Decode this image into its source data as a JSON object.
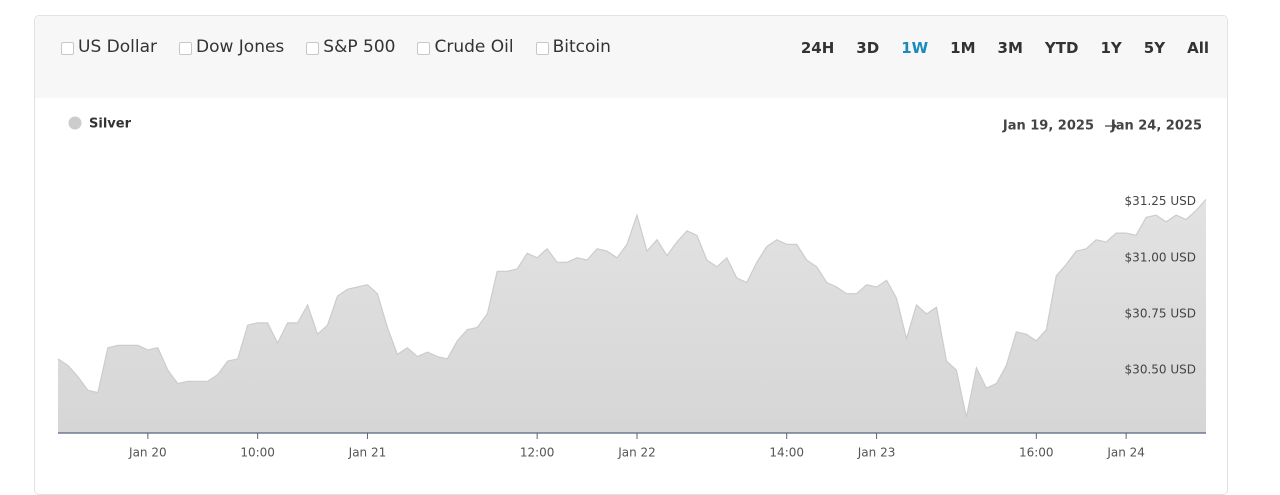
{
  "toolbar": {
    "comparisons": [
      "US Dollar",
      "Dow Jones",
      "S&P 500",
      "Crude Oil",
      "Bitcoin"
    ],
    "ranges": [
      "24H",
      "3D",
      "1W",
      "1M",
      "3M",
      "YTD",
      "1Y",
      "5Y",
      "All"
    ],
    "active_range": "1W"
  },
  "date_range": {
    "start": "Jan 19, 2025",
    "end": "Jan 24, 2025"
  },
  "chart_data": {
    "type": "area",
    "categories": [
      null,
      null,
      null,
      null,
      null,
      null,
      null,
      null,
      null,
      "Jan 20",
      null,
      null,
      null,
      null,
      null,
      null,
      null,
      null,
      null,
      null,
      "10:00",
      null,
      null,
      null,
      null,
      null,
      null,
      null,
      null,
      null,
      null,
      "Jan 21",
      null,
      null,
      null,
      null,
      null,
      null,
      null,
      null,
      null,
      null,
      null,
      null,
      null,
      null,
      null,
      null,
      "12:00",
      null,
      null,
      null,
      null,
      null,
      null,
      null,
      null,
      null,
      "Jan 22",
      null,
      null,
      null,
      null,
      null,
      null,
      null,
      null,
      null,
      null,
      null,
      null,
      null,
      null,
      "14:00",
      null,
      null,
      null,
      null,
      null,
      null,
      null,
      null,
      "Jan 23",
      null,
      null,
      null,
      null,
      null,
      null,
      null,
      null,
      null,
      null,
      null,
      null,
      null,
      null,
      null,
      "16:00",
      null,
      null,
      null,
      null,
      null,
      null,
      null,
      null,
      "Jan 24",
      null,
      null,
      null,
      null,
      null,
      null,
      null,
      null
    ],
    "series": [
      {
        "name": "Silver",
        "color": "#cccccc",
        "values": [
          30.55,
          30.52,
          30.47,
          30.41,
          30.4,
          30.6,
          30.61,
          30.61,
          30.61,
          30.59,
          30.6,
          30.5,
          30.44,
          30.45,
          30.45,
          30.45,
          30.48,
          30.54,
          30.55,
          30.7,
          30.71,
          30.71,
          30.62,
          30.71,
          30.71,
          30.79,
          30.66,
          30.7,
          30.83,
          30.86,
          30.87,
          30.88,
          30.84,
          30.69,
          30.57,
          30.6,
          30.56,
          30.58,
          30.56,
          30.55,
          30.63,
          30.68,
          30.69,
          30.75,
          30.94,
          30.94,
          30.95,
          31.02,
          31.0,
          31.04,
          30.98,
          30.98,
          31.0,
          30.99,
          31.04,
          31.03,
          31.0,
          31.06,
          31.19,
          31.03,
          31.08,
          31.01,
          31.07,
          31.12,
          31.1,
          30.99,
          30.96,
          31.0,
          30.91,
          30.89,
          30.98,
          31.05,
          31.08,
          31.06,
          31.06,
          30.99,
          30.96,
          30.89,
          30.87,
          30.84,
          30.84,
          30.88,
          30.87,
          30.9,
          30.82,
          30.64,
          30.79,
          30.75,
          30.78,
          30.54,
          30.5,
          30.29,
          30.51,
          30.42,
          30.44,
          30.52,
          30.67,
          30.66,
          30.63,
          30.68,
          30.92,
          30.97,
          31.03,
          31.04,
          31.08,
          31.07,
          31.11,
          31.11,
          31.1,
          31.18,
          31.19,
          31.16,
          31.19,
          31.17,
          31.21,
          31.26
        ]
      }
    ],
    "ylim": [
      30.22,
      31.48
    ],
    "yticks": [
      {
        "value": 30.5,
        "label": "$30.50 USD"
      },
      {
        "value": 30.75,
        "label": "$30.75 USD"
      },
      {
        "value": 31.0,
        "label": "$31.00 USD"
      },
      {
        "value": 31.25,
        "label": "$31.25 USD"
      }
    ]
  }
}
